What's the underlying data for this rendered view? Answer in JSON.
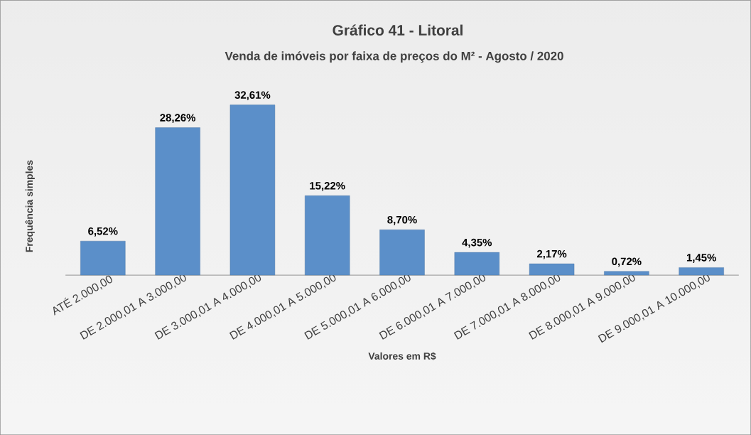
{
  "chart_data": {
    "type": "bar",
    "title": "Gráfico 41 - Litoral",
    "subtitle": "Venda de imóveis por faixa de preços do M² - Agosto / 2020",
    "xlabel": "Valores em R$",
    "ylabel": "Frequência simples",
    "categories": [
      "ATÉ 2.000,00",
      "DE 2.000,01 A 3.000,00",
      "DE 3.000,01 A 4.000,00",
      "DE 4.000,01 A 5.000,00",
      "DE 5.000,01 A 6.000,00",
      "DE 6.000,01 A 7.000,00",
      "DE 7.000,01 A 8.000,00",
      "DE 8.000,01 A 9.000,00",
      "DE 9.000,01 A 10.000,00"
    ],
    "values": [
      6.52,
      28.26,
      32.61,
      15.22,
      8.7,
      4.35,
      2.17,
      0.72,
      1.45
    ],
    "value_labels": [
      "6,52%",
      "28,26%",
      "32,61%",
      "15,22%",
      "8,70%",
      "4,35%",
      "2,17%",
      "0,72%",
      "1,45%"
    ],
    "color": "#5b8fc9",
    "tick_labels": "x"
  }
}
